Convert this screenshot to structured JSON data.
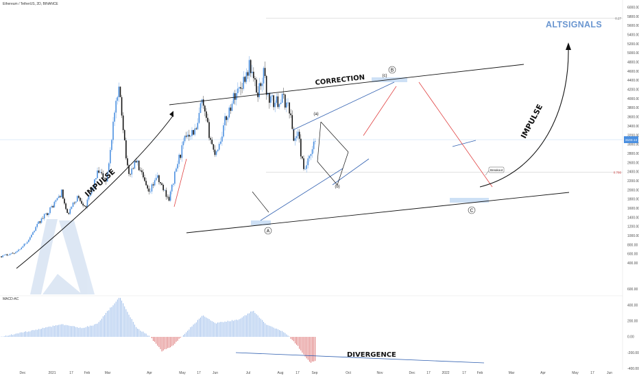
{
  "header": {
    "symbol": "Ethereum / TetherUS, 2D, BINANCE",
    "brand": "ALTSIGNALS",
    "indicator_label": "MACD-AC"
  },
  "colors": {
    "up": "#4a8fe0",
    "down": "#111111",
    "channel": "#111111",
    "blue_line": "#2f5fb0",
    "red_line": "#e04040",
    "highlight": "#bcd6f2",
    "brand": "#6a96d0",
    "macd_pos": "#8fb4e8",
    "macd_neg": "#d86060",
    "ref_line": "#cfcfcf",
    "price_line": "#b9d8f4"
  },
  "chart_data": [
    {
      "type": "candlestick",
      "title": "Ethereum / TetherUS, 2D, BINANCE",
      "y_scale": "linear",
      "ylim": [
        0,
        6400
      ],
      "y_ticks": [
        400,
        600,
        800,
        1000,
        1200,
        1400,
        1600,
        1800,
        2000,
        2200,
        2400,
        2600,
        2800,
        3000,
        3200,
        3400,
        3600,
        3800,
        4000,
        4200,
        4400,
        4600,
        4800,
        5000,
        5200,
        5400,
        5600,
        5800,
        6000,
        6200,
        6400
      ],
      "x_tick_labels": [
        "Dec",
        "2021",
        "17",
        "Feb",
        "Mar",
        "Apr",
        "May",
        "17",
        "Jun",
        "Jul",
        "Aug",
        "17",
        "Sep",
        "Oct",
        "Nov",
        "Dec",
        "17",
        "2022",
        "17",
        "Feb",
        "Mar",
        "Apr",
        "May",
        "17",
        "Jun"
      ],
      "price_path": [
        {
          "d": "2020-11-28",
          "p": 550
        },
        {
          "d": "2020-12-20",
          "p": 650
        },
        {
          "d": "2021-01-04",
          "p": 900
        },
        {
          "d": "2021-01-20",
          "p": 1300
        },
        {
          "d": "2021-02-05",
          "p": 1600
        },
        {
          "d": "2021-02-20",
          "p": 1950
        },
        {
          "d": "2021-02-28",
          "p": 1450
        },
        {
          "d": "2021-03-14",
          "p": 1850
        },
        {
          "d": "2021-03-26",
          "p": 1650
        },
        {
          "d": "2021-04-12",
          "p": 2400
        },
        {
          "d": "2021-04-24",
          "p": 2200
        },
        {
          "d": "2021-05-04",
          "p": 3600
        },
        {
          "d": "2021-05-12",
          "p": 4200
        },
        {
          "d": "2021-05-24",
          "p": 2300
        },
        {
          "d": "2021-06-04",
          "p": 2650
        },
        {
          "d": "2021-06-22",
          "p": 1900
        },
        {
          "d": "2021-07-02",
          "p": 2300
        },
        {
          "d": "2021-07-20",
          "p": 1800
        },
        {
          "d": "2021-08-01",
          "p": 2600
        },
        {
          "d": "2021-08-14",
          "p": 3250
        },
        {
          "d": "2021-08-28",
          "p": 3300
        },
        {
          "d": "2021-09-03",
          "p": 3950
        },
        {
          "d": "2021-09-21",
          "p": 2800
        },
        {
          "d": "2021-09-28",
          "p": 3000
        },
        {
          "d": "2021-10-06",
          "p": 3500
        },
        {
          "d": "2021-10-20",
          "p": 4100
        },
        {
          "d": "2021-10-29",
          "p": 4300
        },
        {
          "d": "2021-11-10",
          "p": 4750
        },
        {
          "d": "2021-11-20",
          "p": 4100
        },
        {
          "d": "2021-11-30",
          "p": 4600
        },
        {
          "d": "2021-12-04",
          "p": 4050
        },
        {
          "d": "2021-12-14",
          "p": 3900
        },
        {
          "d": "2021-12-26",
          "p": 4000
        },
        {
          "d": "2022-01-04",
          "p": 3800
        },
        {
          "d": "2022-01-10",
          "p": 3100
        },
        {
          "d": "2022-01-16",
          "p": 3250
        },
        {
          "d": "2022-01-24",
          "p": 2400
        },
        {
          "d": "2022-02-03",
          "p": 2750
        },
        {
          "d": "2022-02-09",
          "p": 3100
        }
      ],
      "price_scale_markers": [
        {
          "label": "0.27",
          "value": 5760
        },
        {
          "label": "3103.14",
          "value": 3103
        },
        {
          "label": "0.786",
          "value": 2390
        }
      ],
      "annotations": {
        "impulse_left": "IMPULSE",
        "impulse_right": "IMPULSE",
        "correction": "CORRECTION",
        "breakout": "Breakout",
        "wave_A": "A",
        "wave_B": "B",
        "wave_C": "C",
        "wave_a": "(a)",
        "wave_b": "(b)",
        "wave_c": "(c)"
      }
    },
    {
      "type": "bar",
      "title": "MACD-AC",
      "ylim": [
        -400,
        600
      ],
      "y_ticks": [
        600,
        400,
        200,
        0,
        -200,
        -400
      ],
      "y_tick_labels": [
        "600.00",
        "400.00",
        "200.00",
        "0.00",
        "-200.00",
        "-400.00"
      ],
      "macd_path": [
        {
          "d": "2020-11-28",
          "v": 0
        },
        {
          "d": "2021-01-10",
          "v": 80
        },
        {
          "d": "2021-02-20",
          "v": 160
        },
        {
          "d": "2021-03-20",
          "v": 110
        },
        {
          "d": "2021-04-10",
          "v": 160
        },
        {
          "d": "2021-05-12",
          "v": 500
        },
        {
          "d": "2021-06-04",
          "v": 120
        },
        {
          "d": "2021-06-24",
          "v": 0
        },
        {
          "d": "2021-07-10",
          "v": -180
        },
        {
          "d": "2021-07-26",
          "v": -110
        },
        {
          "d": "2021-08-06",
          "v": 0
        },
        {
          "d": "2021-09-05",
          "v": 270
        },
        {
          "d": "2021-09-22",
          "v": 170
        },
        {
          "d": "2021-10-26",
          "v": 220
        },
        {
          "d": "2021-11-14",
          "v": 330
        },
        {
          "d": "2021-12-04",
          "v": 150
        },
        {
          "d": "2021-12-26",
          "v": 70
        },
        {
          "d": "2022-01-04",
          "v": 0
        },
        {
          "d": "2022-01-16",
          "v": -120
        },
        {
          "d": "2022-02-02",
          "v": -330
        },
        {
          "d": "2022-02-09",
          "v": -300
        }
      ],
      "annotation": "DIVERGENCE"
    }
  ]
}
